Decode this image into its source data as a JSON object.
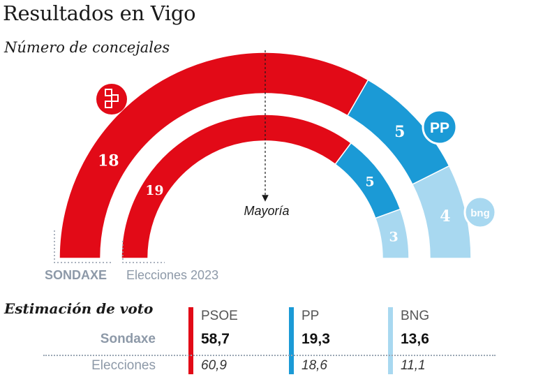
{
  "title": "Resultados en Vigo",
  "subtitle": "Número de concejales",
  "colors": {
    "psoe": "#e20a17",
    "pp": "#1b9ad6",
    "bng": "#a8d8f0",
    "label_gray": "#8d99a8"
  },
  "chart_data": [
    {
      "type": "parliament-arc",
      "name": "SONDAXE",
      "total_seats": 27,
      "majority_label": "Mayoría",
      "series": [
        {
          "party": "PSOE",
          "seats": 18,
          "seats_label": "18",
          "color": "#e20a17",
          "logo": "psoe-rose-icon"
        },
        {
          "party": "PP",
          "seats": 5,
          "seats_label": "5",
          "color": "#1b9ad6",
          "logo": "pp-logo-icon",
          "logo_text": "PP"
        },
        {
          "party": "BNG",
          "seats": 4,
          "seats_label": "4",
          "color": "#a8d8f0",
          "logo": "bng-logo-icon",
          "logo_text": "bng"
        }
      ]
    },
    {
      "type": "parliament-arc",
      "name": "Elecciones 2023",
      "total_seats": 27,
      "series": [
        {
          "party": "PSOE",
          "seats": 19,
          "seats_label": "19",
          "color": "#e20a17"
        },
        {
          "party": "PP",
          "seats": 5,
          "seats_label": "5",
          "color": "#1b9ad6"
        },
        {
          "party": "BNG",
          "seats": 3,
          "seats_label": "3",
          "color": "#a8d8f0"
        }
      ]
    }
  ],
  "arc_labels": {
    "outer": "SONDAXE",
    "inner": "Elecciones 2023",
    "majority": "Mayoría"
  },
  "vote": {
    "title": "Estimación de voto",
    "rows": [
      "Sondaxe",
      "Elecciones"
    ],
    "parties": [
      {
        "name": "PSOE",
        "color": "#e20a17",
        "sondaxe": "58,7",
        "elecciones": "60,9"
      },
      {
        "name": "PP",
        "color": "#1b9ad6",
        "sondaxe": "19,3",
        "elecciones": "18,6"
      },
      {
        "name": "BNG",
        "color": "#a8d8f0",
        "sondaxe": "13,6",
        "elecciones": "11,1"
      }
    ]
  }
}
